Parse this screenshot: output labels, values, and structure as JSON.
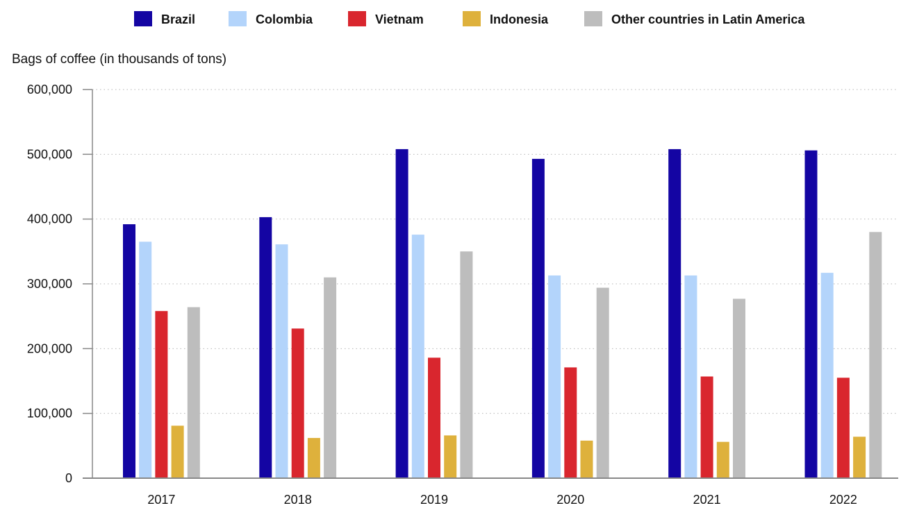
{
  "chart_data": {
    "type": "bar",
    "title": "",
    "ylabel": "Bags of coffee (in thousands of tons)",
    "xlabel": "",
    "categories": [
      "2017",
      "2018",
      "2019",
      "2020",
      "2021",
      "2022"
    ],
    "ylim": [
      0,
      600000
    ],
    "yticks": [
      0,
      100000,
      200000,
      300000,
      400000,
      500000,
      600000
    ],
    "ytick_labels": [
      "0",
      "100,000",
      "200,000",
      "300,000",
      "400,000",
      "500,000",
      "600,000"
    ],
    "grid": true,
    "legend_position": "top-center",
    "series": [
      {
        "name": "Brazil",
        "color": "#1405a3",
        "values": [
          392000,
          403000,
          508000,
          493000,
          508000,
          506000
        ]
      },
      {
        "name": "Colombia",
        "color": "#b3d4fb",
        "values": [
          365000,
          361000,
          376000,
          313000,
          313000,
          317000
        ]
      },
      {
        "name": "Vietnam",
        "color": "#d9262e",
        "values": [
          258000,
          231000,
          186000,
          171000,
          157000,
          155000
        ]
      },
      {
        "name": "Indonesia",
        "color": "#deb13c",
        "values": [
          81000,
          62000,
          66000,
          58000,
          56000,
          64000
        ]
      },
      {
        "name": "Other countries in Latin America",
        "color": "#bdbdbd",
        "values": [
          264000,
          310000,
          350000,
          294000,
          277000,
          380000
        ]
      }
    ]
  }
}
